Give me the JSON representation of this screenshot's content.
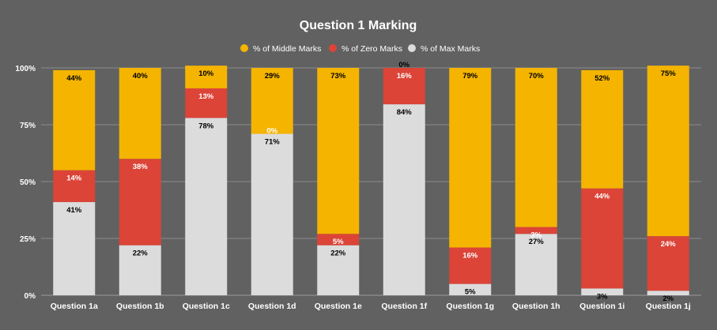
{
  "chart_data": {
    "type": "bar",
    "stacked": true,
    "title": "Question 1 Marking",
    "legend_position": "top",
    "grid": true,
    "ylim": [
      0,
      100
    ],
    "yticks": [
      {
        "value": 0,
        "label": "0%"
      },
      {
        "value": 25,
        "label": "25%"
      },
      {
        "value": 50,
        "label": "50%"
      },
      {
        "value": 75,
        "label": "75%"
      },
      {
        "value": 100,
        "label": "100%"
      }
    ],
    "categories": [
      "Question 1a",
      "Question 1b",
      "Question 1c",
      "Question 1d",
      "Question 1e",
      "Question 1f",
      "Question 1g",
      "Question 1h",
      "Question 1i",
      "Question 1j"
    ],
    "stack_order": [
      "max",
      "zero",
      "middle"
    ],
    "legend_order": [
      "middle",
      "zero",
      "max"
    ],
    "series": {
      "middle": {
        "name": "% of Middle Marks",
        "color": "#F4B400",
        "label_color": "#000000",
        "values": [
          44,
          40,
          10,
          29,
          73,
          0,
          79,
          70,
          52,
          75
        ],
        "labels": [
          "44%",
          "40%",
          "10%",
          "29%",
          "73%",
          "0%",
          "79%",
          "70%",
          "52%",
          "75%"
        ]
      },
      "zero": {
        "name": "% of Zero Marks",
        "color": "#DB4437",
        "label_color": "#FFFFFF",
        "values": [
          14,
          38,
          13,
          0,
          5,
          16,
          16,
          3,
          44,
          24
        ],
        "labels": [
          "14%",
          "38%",
          "13%",
          "0%",
          "5%",
          "16%",
          "16%",
          "3%",
          "44%",
          "24%"
        ]
      },
      "max": {
        "name": "% of Max Marks",
        "color": "#DCDCDC",
        "label_color": "#000000",
        "values": [
          41,
          22,
          78,
          71,
          22,
          84,
          5,
          27,
          3,
          2
        ],
        "labels": [
          "41%",
          "22%",
          "78%",
          "71%",
          "22%",
          "84%",
          "5%",
          "27%",
          "3%",
          "2%"
        ]
      }
    }
  }
}
